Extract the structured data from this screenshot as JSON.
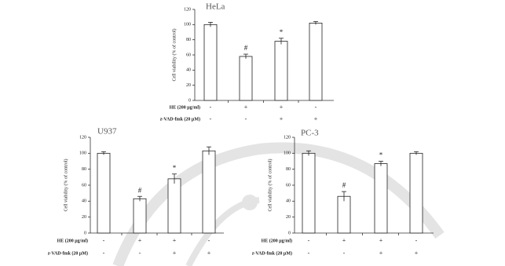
{
  "chart_data": [
    {
      "type": "bar",
      "title": "HeLa",
      "ylabel": "Cell viability (% of control)",
      "categories": [
        null,
        null,
        null,
        null
      ],
      "values": [
        100,
        58,
        78,
        102
      ],
      "errors": [
        3,
        3,
        4,
        2
      ],
      "annotations": [
        null,
        "#",
        "*",
        null
      ],
      "color": "#ffffff",
      "ylim": [
        0,
        120
      ],
      "yticks": [
        0,
        20,
        40,
        60,
        80,
        100,
        120
      ],
      "conditions": [
        {
          "label": "HE (200 μg/ml)",
          "signs": [
            "-",
            "+",
            "+",
            "-"
          ]
        },
        {
          "label": "z-VAD-fmk (20 μM)",
          "signs": [
            "-",
            "-",
            "+",
            "+"
          ]
        }
      ]
    },
    {
      "type": "bar",
      "title": "U937",
      "ylabel": "Cell viability (% of control)",
      "categories": [
        null,
        null,
        null,
        null
      ],
      "values": [
        100,
        43,
        68,
        103
      ],
      "errors": [
        2,
        3,
        6,
        5
      ],
      "annotations": [
        null,
        "#",
        "*",
        null
      ],
      "color": "#ffffff",
      "ylim": [
        0,
        120
      ],
      "yticks": [
        0,
        20,
        40,
        60,
        80,
        100,
        120
      ],
      "conditions": [
        {
          "label": "HE (200 μg/ml)",
          "signs": [
            "-",
            "+",
            "+",
            "-"
          ]
        },
        {
          "label": "z-VAD-fmk (20 μM)",
          "signs": [
            "-",
            "-",
            "+",
            "+"
          ]
        }
      ]
    },
    {
      "type": "bar",
      "title": "PC-3",
      "ylabel": "Cell viability (% of control)",
      "categories": [
        null,
        null,
        null,
        null
      ],
      "values": [
        100,
        46,
        87,
        100
      ],
      "errors": [
        3,
        6,
        3,
        2
      ],
      "annotations": [
        null,
        "#",
        "*",
        null
      ],
      "color": "#ffffff",
      "ylim": [
        0,
        120
      ],
      "yticks": [
        0,
        20,
        40,
        60,
        80,
        100,
        120
      ],
      "conditions": [
        {
          "label": "HE (200 μg/ml)",
          "signs": [
            "-",
            "+",
            "+",
            "-"
          ]
        },
        {
          "label": "z-VAD-fmk (20 μM)",
          "signs": [
            "-",
            "-",
            "+",
            "+"
          ]
        }
      ]
    }
  ]
}
